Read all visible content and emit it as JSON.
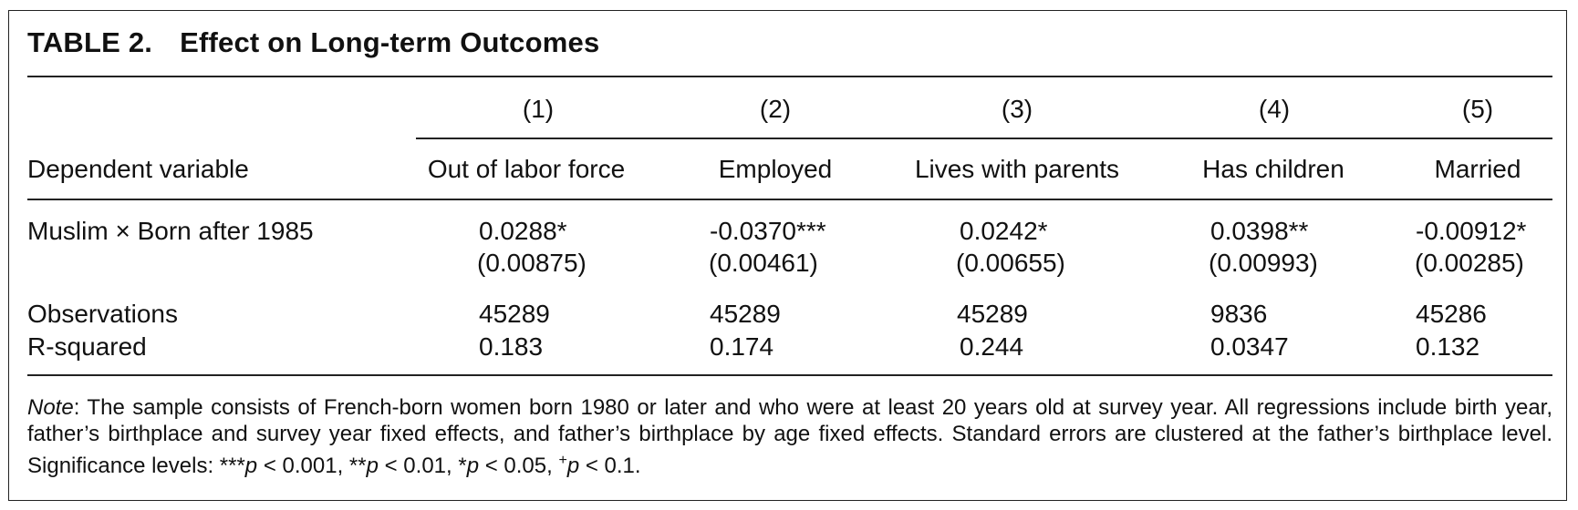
{
  "table": {
    "label": "TABLE 2.",
    "title": "Effect on Long-term Outcomes",
    "column_numbers": [
      "(1)",
      "(2)",
      "(3)",
      "(4)",
      "(5)"
    ],
    "row_header_label": "Dependent variable",
    "columns": [
      "Out of labor force",
      "Employed",
      "Lives with parents",
      "Has children",
      "Married"
    ],
    "rows": [
      {
        "label": "Muslim × Born after 1985",
        "coefficients": [
          "0.0288*",
          "-0.0370***",
          "0.0242*",
          "0.0398**",
          "-0.00912*"
        ],
        "std_errors": [
          "(0.00875)",
          "(0.00461)",
          "(0.00655)",
          "(0.00993)",
          "(0.00285)"
        ]
      },
      {
        "label": "Observations",
        "values": [
          "45289",
          "45289",
          "45289",
          "9836",
          "45286"
        ]
      },
      {
        "label": "R-squared",
        "values": [
          "0.183",
          "0.174",
          "0.244",
          "0.0347",
          "0.132"
        ]
      }
    ],
    "note": {
      "label": "Note",
      "text": ": The sample consists of French-born women born 1980 or later and who were at least 20 years old at survey year. All regressions include birth year, father’s birthplace and survey year fixed effects, and father’s birthplace by age fixed effects. Standard errors are clustered at the father’s birthplace level. Significance levels: ***",
      "sig_levels": [
        {
          "stars": "***",
          "p": "p",
          "rest": " < 0.001, "
        },
        {
          "stars": "**",
          "p": "p",
          "rest": " < 0.01, "
        },
        {
          "stars": "*",
          "p": "p",
          "rest": " < 0.05, "
        },
        {
          "stars": "+",
          "p": "p",
          "rest": " < 0.1."
        }
      ]
    }
  }
}
